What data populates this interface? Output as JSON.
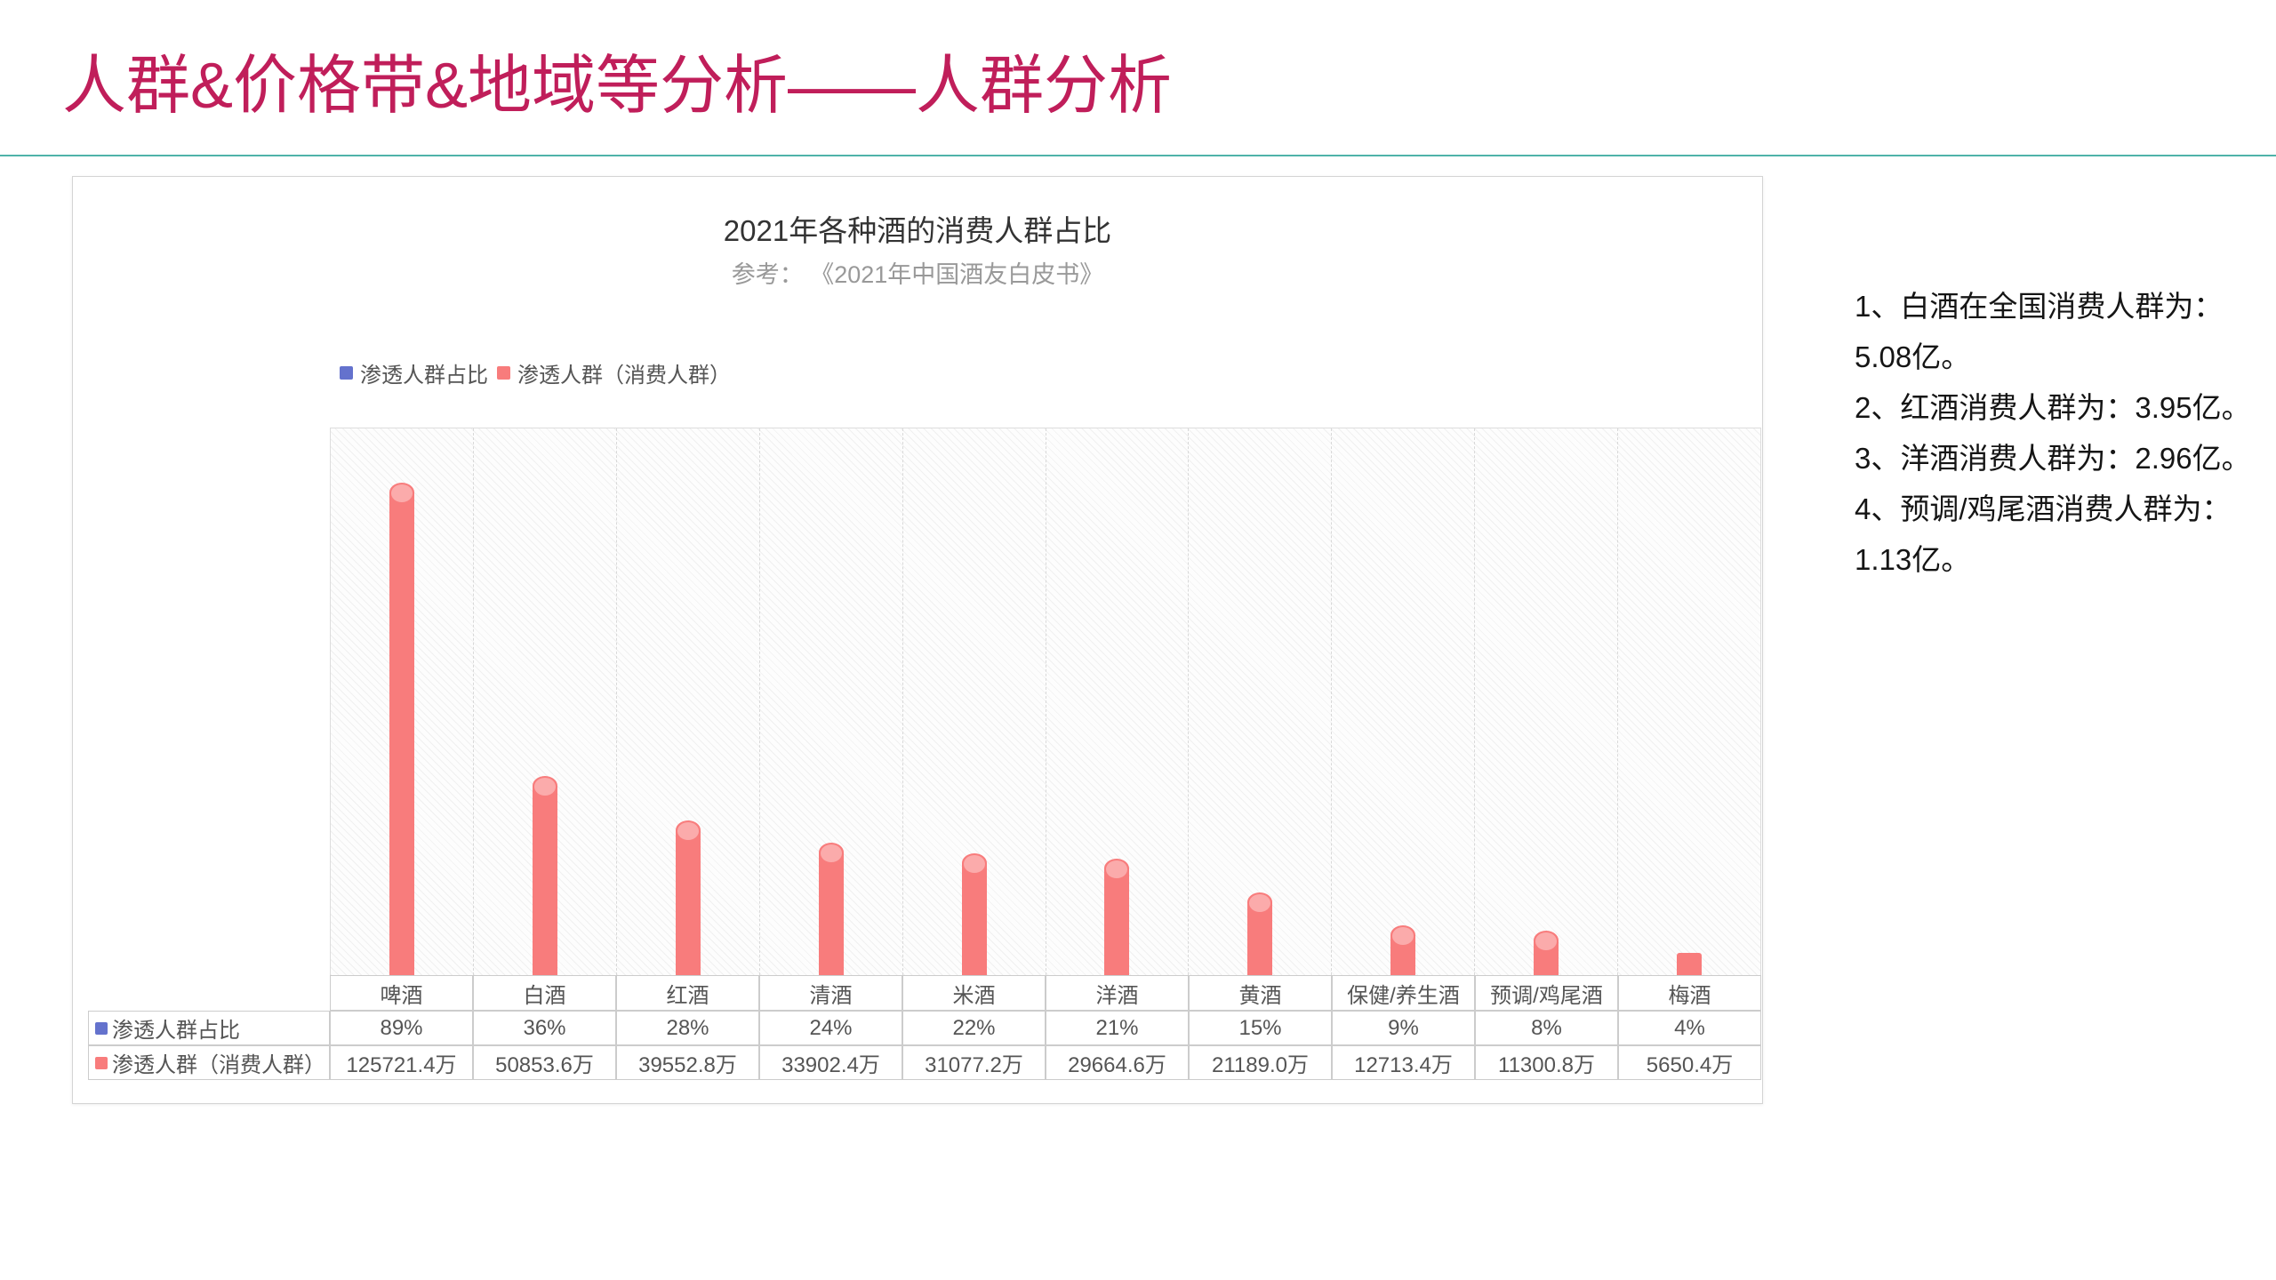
{
  "page": {
    "title": "人群&价格带&地域等分析——人群分析"
  },
  "theme": {
    "title_color": "#c01e5a",
    "divider_color": "#4fb3a9",
    "bar_color": "#f87c7c",
    "bar_cap_color": "#fbabab",
    "percent_series_color": "#6472cd",
    "table_border_color": "#cccccc",
    "chart_title_color": "#333333",
    "subtitle_color": "#999999"
  },
  "chart_data": {
    "type": "bar",
    "title": "2021年各种酒的消费人群占比",
    "subtitle": "参考： 《2021年中国酒友白皮书》",
    "categories": [
      "啤酒",
      "白酒",
      "红酒",
      "清酒",
      "米酒",
      "洋酒",
      "黄酒",
      "保健/养生酒",
      "预调/鸡尾酒",
      "梅酒"
    ],
    "series": [
      {
        "name": "渗透人群占比",
        "color": "#6472cd",
        "unit": "%",
        "values": [
          89,
          36,
          28,
          24,
          22,
          21,
          15,
          9,
          8,
          4
        ]
      },
      {
        "name": "渗透人群（消费人群）",
        "color": "#f87c7c",
        "unit": "万",
        "values": [
          125721.4,
          50853.6,
          39552.8,
          33902.4,
          31077.2,
          29664.6,
          21189.0,
          12713.4,
          11300.8,
          5650.4
        ]
      }
    ],
    "bar_series_index": 1,
    "ylim": [
      0,
      140000
    ],
    "y_axis_labels": "hidden",
    "legend_position": "top-left above plot",
    "grid": "hatched plot background with dashed vertical column separators, values shown in table below chart"
  },
  "notes": {
    "lines": [
      "1、白酒在全国消费人群为：",
      "5.08亿。",
      "2、红酒消费人群为：3.95亿。",
      "3、洋酒消费人群为：2.96亿。",
      "4、预调/鸡尾酒消费人群为：",
      "1.13亿。"
    ]
  }
}
